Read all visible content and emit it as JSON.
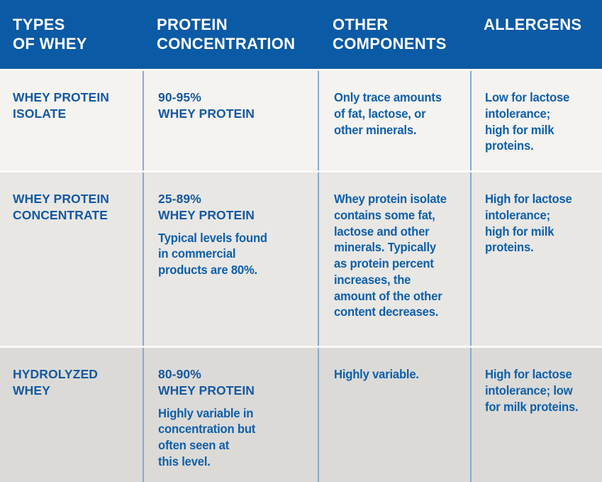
{
  "colors": {
    "header_bg": "#0B5AA5",
    "header_text": "#FFFFFF",
    "heading_text": "#15599F",
    "body_text": "#0E5FA9",
    "divider": "#86ABCE",
    "row_separator": "#FAFAF8",
    "row_bg_1": "#F4F3F0",
    "row_bg_2": "#E8E7E4",
    "row_bg_3": "#DBDAD7"
  },
  "header": {
    "columns": [
      "TYPES\nOF WHEY",
      "PROTEIN\nCONCENTRATION",
      "OTHER\nCOMPONENTS",
      "ALLERGENS"
    ]
  },
  "rows": [
    {
      "type": "WHEY PROTEIN\nISOLATE",
      "concentration_heading": "90-95%\nWHEY PROTEIN",
      "concentration_note": "",
      "other_components": "Only trace amounts\nof fat, lactose, or\nother minerals.",
      "allergens": "Low for lactose\nintolerance;\nhigh for milk\nproteins."
    },
    {
      "type": "WHEY PROTEIN\nCONCENTRATE",
      "concentration_heading": "25-89%\nWHEY PROTEIN",
      "concentration_note": "Typical levels found\nin commercial\nproducts are 80%.",
      "other_components": "Whey protein isolate\ncontains some fat,\nlactose and other\nminerals. Typically\nas protein percent\nincreases, the\namount of the other\ncontent decreases.",
      "allergens": "High for lactose\nintolerance;\nhigh for milk\nproteins."
    },
    {
      "type": "HYDROLYZED\nWHEY",
      "concentration_heading": "80-90%\nWHEY PROTEIN",
      "concentration_note": "Highly variable in\nconcentration but\noften seen at\nthis level.",
      "other_components": "Highly variable.",
      "allergens": "High for lactose\nintolerance; low\nfor milk proteins."
    }
  ],
  "chart_data": {
    "type": "table",
    "columns": [
      "TYPES OF WHEY",
      "PROTEIN CONCENTRATION",
      "OTHER COMPONENTS",
      "ALLERGENS"
    ],
    "rows": [
      [
        "WHEY PROTEIN ISOLATE",
        "90-95% WHEY PROTEIN",
        "Only trace amounts of fat, lactose, or other minerals.",
        "Low for lactose intolerance; high for milk proteins."
      ],
      [
        "WHEY PROTEIN CONCENTRATE",
        "25-89% WHEY PROTEIN. Typical levels found in commercial products are 80%.",
        "Whey protein isolate contains some fat, lactose and other minerals. Typically as protein percent increases, the amount of the other content decreases.",
        "High for lactose intolerance; high for milk proteins."
      ],
      [
        "HYDROLYZED WHEY",
        "80-90% WHEY PROTEIN. Highly variable in concentration but often seen at this level.",
        "Highly variable.",
        "High for lactose intolerance; low for milk proteins."
      ]
    ]
  }
}
